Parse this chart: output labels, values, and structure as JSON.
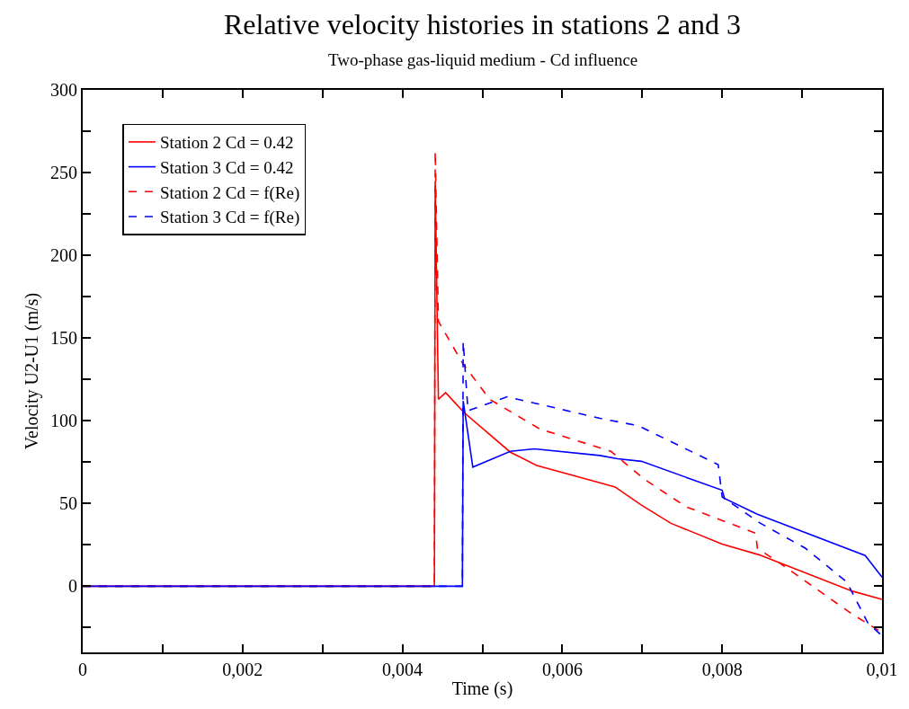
{
  "chart_data": {
    "type": "line",
    "title": "Relative velocity histories in stations 2 and 3",
    "subtitle": "Two-phase gas-liquid medium - Cd influence",
    "xlabel": "Time (s)",
    "ylabel": "Velocity U2-U1 (m/s)",
    "series": [
      {
        "name": "Station 2 Cd = 0.42",
        "color": "#ff0000",
        "line_style": "solid",
        "x": [
          0,
          0.0044,
          0.00441,
          0.00445,
          0.00454,
          0.00477,
          0.00535,
          0.00568,
          0.00647,
          0.00666,
          0.00699,
          0.00736,
          0.008,
          0.00846,
          0.00963,
          0.01
        ],
        "values": [
          0,
          0,
          245,
          113,
          117,
          105,
          81,
          73,
          62.5,
          60,
          49,
          38,
          25.5,
          19,
          -3,
          -8
        ]
      },
      {
        "name": "Station 3 Cd = 0.42",
        "color": "#0000ff",
        "line_style": "solid",
        "x": [
          0,
          0.00475,
          0.00476,
          0.00488,
          0.00535,
          0.00565,
          0.00647,
          0.00669,
          0.00699,
          0.008,
          0.00803,
          0.00844,
          0.00979,
          0.01
        ],
        "values": [
          0,
          0,
          112,
          72,
          81.5,
          83,
          79,
          77,
          75.5,
          58,
          53,
          43.5,
          18.5,
          5.5
        ]
      },
      {
        "name": "Station 2 Cd = f(Re)",
        "color": "#ff0000",
        "line_style": "dashed",
        "x": [
          0,
          0.0044,
          0.00441,
          0.00445,
          0.00475,
          0.00509,
          0.00572,
          0.00661,
          0.00703,
          0.00755,
          0.00842,
          0.00844,
          0.00878,
          0.00963,
          0.01
        ],
        "values": [
          0,
          0,
          263,
          160,
          135,
          113,
          95,
          81.5,
          64.5,
          48,
          32,
          23,
          12,
          -17,
          -28
        ]
      },
      {
        "name": "Station 3 Cd = f(Re)",
        "color": "#0000ff",
        "line_style": "dashed",
        "x": [
          0,
          0.00475,
          0.00476,
          0.00482,
          0.00531,
          0.00647,
          0.00695,
          0.00795,
          0.008,
          0.00848,
          0.00904,
          0.00956,
          0.00982,
          0.01
        ],
        "values": [
          0,
          0,
          148,
          106,
          114.5,
          101.5,
          97,
          73.5,
          54,
          38,
          23,
          2.5,
          -22,
          -30
        ]
      }
    ],
    "xlim": [
      0,
      0.01
    ],
    "xticks": [
      {
        "value": 0,
        "label": "0"
      },
      {
        "value": 0.001,
        "label": null
      },
      {
        "value": 0.002,
        "label": "0,002"
      },
      {
        "value": 0.003,
        "label": null
      },
      {
        "value": 0.004,
        "label": "0,004"
      },
      {
        "value": 0.005,
        "label": null
      },
      {
        "value": 0.006,
        "label": "0,006"
      },
      {
        "value": 0.007,
        "label": null
      },
      {
        "value": 0.008,
        "label": "0,008"
      },
      {
        "value": 0.009,
        "label": null
      },
      {
        "value": 0.01,
        "label": "0,01"
      }
    ],
    "ylim": [
      -40,
      300
    ],
    "yticks": [
      {
        "value": -25,
        "label": null
      },
      0,
      {
        "value": 25,
        "label": null
      },
      50,
      {
        "value": 75,
        "label": null
      },
      100,
      {
        "value": 125,
        "label": null
      },
      150,
      {
        "value": 175,
        "label": null
      },
      200,
      {
        "value": 225,
        "label": null
      },
      250,
      {
        "value": 275,
        "label": null
      },
      300
    ],
    "grid": false,
    "legend": "top left",
    "marker": "none"
  }
}
